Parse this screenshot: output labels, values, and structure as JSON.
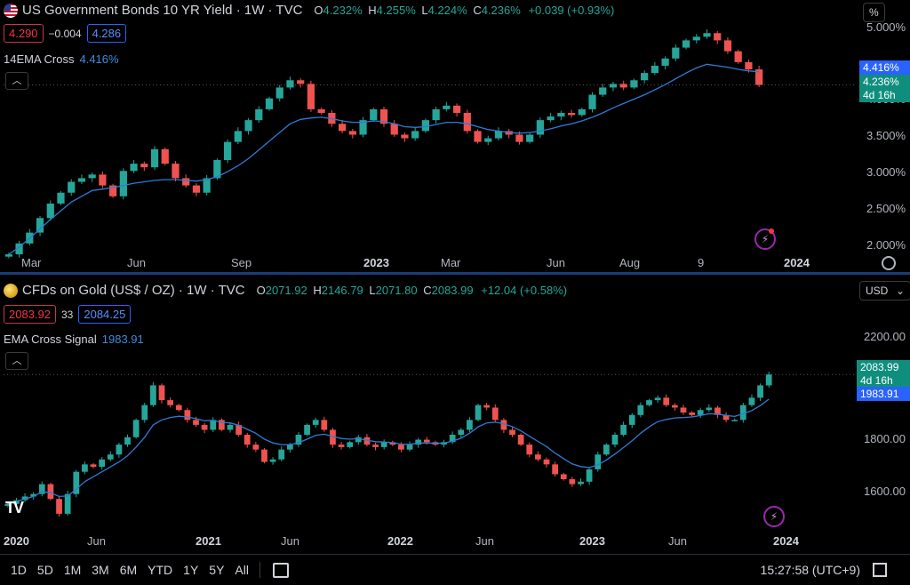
{
  "bond": {
    "title": "US Government Bonds 10 YR Yield · 1W · TVC",
    "ohlc": {
      "o_key": "O",
      "o": "4.232%",
      "h_key": "H",
      "h": "4.255%",
      "l_key": "L",
      "l": "4.224%",
      "c_key": "C",
      "c": "4.236%",
      "chg": "+0.039 (+0.93%)"
    },
    "sell": "4.290",
    "spread": "−0.004",
    "buy": "4.286",
    "indicator": {
      "name": "14EMA Cross",
      "value": "4.416%"
    },
    "unit": "%",
    "price_labels": [
      "5.000%",
      "4.000%",
      "3.500%",
      "3.000%",
      "2.500%",
      "2.000%"
    ],
    "time_labels": [
      "Mar",
      "Jun",
      "Sep",
      "2023",
      "Mar",
      "Jun",
      "Aug",
      "9",
      "2024"
    ],
    "tags": {
      "ema": "4.416%",
      "last": "4.236%",
      "countdown": "4d 16h"
    }
  },
  "gold": {
    "title": "CFDs on Gold (US$ / OZ) · 1W · TVC",
    "ohlc": {
      "o_key": "O",
      "o": "2071.92",
      "h_key": "H",
      "h": "2146.79",
      "l_key": "L",
      "l": "2071.80",
      "c_key": "C",
      "c": "2083.99",
      "chg": "+12.04 (+0.58%)"
    },
    "sell": "2083.92",
    "spread": "33",
    "buy": "2084.25",
    "indicator": {
      "name": "EMA Cross Signal",
      "value": "1983.91"
    },
    "unit": "USD",
    "price_labels": [
      "2200.00",
      "1800.00",
      "1600.00"
    ],
    "time_labels": [
      "2020",
      "Jun",
      "2021",
      "Jun",
      "2022",
      "Jun",
      "2023",
      "Jun",
      "2024"
    ],
    "tags": {
      "last": "2083.99",
      "countdown": "4d 16h",
      "ema": "1983.91"
    }
  },
  "toolbar": {
    "ranges": [
      "1D",
      "5D",
      "1M",
      "3M",
      "6M",
      "YTD",
      "1Y",
      "5Y",
      "All"
    ],
    "clock": "15:27:58 (UTC+9)"
  },
  "colors": {
    "up": "#26a69a",
    "down": "#ef5350",
    "ema": "#2f7bd6",
    "divider": "#1c3c7a"
  },
  "chart_data": [
    {
      "type": "candlestick",
      "title": "US Government Bonds 10 YR Yield · 1W · TVC",
      "ylabel": "%",
      "ylim": [
        1.95,
        5.1
      ],
      "x_ticks": [
        "Mar",
        "Jun",
        "Sep",
        "2023",
        "Mar",
        "Jun",
        "Aug",
        "9",
        "2024"
      ],
      "series": [
        {
          "name": "price",
          "values": [
            1.9,
            2.05,
            2.2,
            2.4,
            2.6,
            2.75,
            2.9,
            2.95,
            3.0,
            2.85,
            2.7,
            3.05,
            3.15,
            3.1,
            3.35,
            3.15,
            2.95,
            2.85,
            2.75,
            2.95,
            3.2,
            3.45,
            3.6,
            3.75,
            3.9,
            4.05,
            4.2,
            4.3,
            4.25,
            3.9,
            3.85,
            3.7,
            3.6,
            3.55,
            3.75,
            3.9,
            3.7,
            3.55,
            3.5,
            3.6,
            3.75,
            3.9,
            3.95,
            3.85,
            3.6,
            3.45,
            3.5,
            3.6,
            3.55,
            3.45,
            3.55,
            3.75,
            3.8,
            3.85,
            3.82,
            3.9,
            4.1,
            4.2,
            4.25,
            4.2,
            4.3,
            4.4,
            4.5,
            4.6,
            4.75,
            4.85,
            4.9,
            4.95,
            4.85,
            4.7,
            4.55,
            4.45,
            4.236
          ]
        },
        {
          "name": "14EMA Cross",
          "values": [
            1.9,
            2.0,
            2.12,
            2.25,
            2.38,
            2.5,
            2.62,
            2.7,
            2.78,
            2.8,
            2.82,
            2.85,
            2.88,
            2.9,
            2.92,
            2.93,
            2.93,
            2.92,
            2.91,
            2.93,
            2.97,
            3.04,
            3.12,
            3.22,
            3.34,
            3.46,
            3.58,
            3.7,
            3.76,
            3.78,
            3.79,
            3.77,
            3.74,
            3.72,
            3.72,
            3.74,
            3.73,
            3.7,
            3.66,
            3.65,
            3.66,
            3.69,
            3.72,
            3.72,
            3.7,
            3.66,
            3.62,
            3.6,
            3.58,
            3.57,
            3.58,
            3.6,
            3.63,
            3.67,
            3.7,
            3.74,
            3.79,
            3.85,
            3.92,
            3.98,
            4.04,
            4.1,
            4.17,
            4.24,
            4.32,
            4.4,
            4.47,
            4.52,
            4.5,
            4.48,
            4.45,
            4.43,
            4.416
          ]
        }
      ]
    },
    {
      "type": "candlestick",
      "title": "CFDs on Gold (US$ / OZ) · 1W · TVC",
      "ylabel": "USD",
      "ylim": [
        1480,
        2290
      ],
      "x_ticks": [
        "2020",
        "Jun",
        "2021",
        "Jun",
        "2022",
        "Jun",
        "2023",
        "Jun",
        "2024"
      ],
      "series": [
        {
          "name": "price",
          "values": [
            1560,
            1575,
            1590,
            1600,
            1640,
            1580,
            1520,
            1600,
            1690,
            1720,
            1710,
            1740,
            1760,
            1800,
            1830,
            1900,
            1960,
            2040,
            1980,
            1960,
            1940,
            1900,
            1880,
            1860,
            1900,
            1860,
            1880,
            1840,
            1800,
            1780,
            1730,
            1740,
            1780,
            1800,
            1840,
            1880,
            1900,
            1860,
            1800,
            1790,
            1810,
            1830,
            1800,
            1790,
            1810,
            1800,
            1780,
            1800,
            1820,
            1810,
            1800,
            1810,
            1840,
            1860,
            1900,
            1960,
            1950,
            1900,
            1860,
            1840,
            1800,
            1760,
            1740,
            1720,
            1680,
            1660,
            1640,
            1650,
            1700,
            1760,
            1800,
            1840,
            1880,
            1920,
            1960,
            1980,
            1990,
            1960,
            1950,
            1930,
            1920,
            1940,
            1950,
            1920,
            1900,
            1900,
            1960,
            1990,
            2040,
            2083.99
          ]
        },
        {
          "name": "EMA Cross Signal",
          "values": [
            1560,
            1570,
            1580,
            1590,
            1610,
            1605,
            1590,
            1592,
            1620,
            1650,
            1670,
            1690,
            1710,
            1730,
            1755,
            1790,
            1830,
            1880,
            1900,
            1910,
            1915,
            1912,
            1905,
            1897,
            1898,
            1890,
            1888,
            1878,
            1862,
            1846,
            1822,
            1807,
            1800,
            1800,
            1808,
            1822,
            1838,
            1842,
            1833,
            1825,
            1822,
            1824,
            1818,
            1812,
            1811,
            1808,
            1802,
            1801,
            1806,
            1807,
            1805,
            1806,
            1814,
            1826,
            1846,
            1872,
            1888,
            1891,
            1884,
            1873,
            1856,
            1834,
            1813,
            1792,
            1766,
            1743,
            1722,
            1711,
            1707,
            1718,
            1738,
            1762,
            1788,
            1816,
            1846,
            1872,
            1893,
            1902,
            1908,
            1910,
            1912,
            1918,
            1925,
            1924,
            1918,
            1914,
            1925,
            1938,
            1958,
            1983.91
          ]
        }
      ]
    }
  ]
}
